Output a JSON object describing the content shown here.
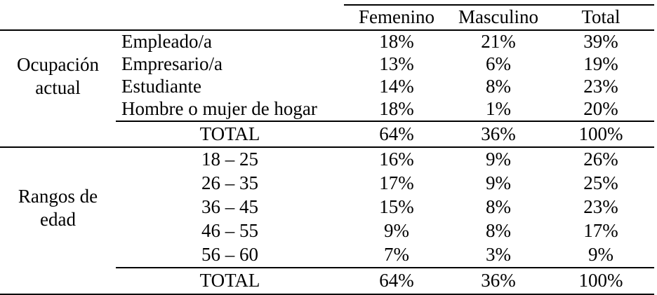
{
  "table": {
    "column_headers": [
      "Femenino",
      "Masculino",
      "Total"
    ],
    "sections": [
      {
        "group_label": "Ocupación actual",
        "rows": [
          {
            "label": "Empleado/a",
            "femenino": "18%",
            "masculino": "21%",
            "total": "39%"
          },
          {
            "label": "Empresario/a",
            "femenino": "13%",
            "masculino": "6%",
            "total": "19%"
          },
          {
            "label": "Estudiante",
            "femenino": "14%",
            "masculino": "8%",
            "total": "23%"
          },
          {
            "label": "Hombre o mujer de hogar",
            "femenino": "18%",
            "masculino": "1%",
            "total": "20%"
          }
        ],
        "total_row": {
          "label": "TOTAL",
          "femenino": "64%",
          "masculino": "36%",
          "total": "100%"
        }
      },
      {
        "group_label": "Rangos de edad",
        "rows": [
          {
            "label": "18 – 25",
            "femenino": "16%",
            "masculino": "9%",
            "total": "26%"
          },
          {
            "label": "26 – 35",
            "femenino": "17%",
            "masculino": "9%",
            "total": "25%"
          },
          {
            "label": "36 – 45",
            "femenino": "15%",
            "masculino": "8%",
            "total": "23%"
          },
          {
            "label": "46 – 55",
            "femenino": "9%",
            "masculino": "8%",
            "total": "17%"
          },
          {
            "label": "56 – 60",
            "femenino": "7%",
            "masculino": "3%",
            "total": "9%"
          }
        ],
        "total_row": {
          "label": "TOTAL",
          "femenino": "64%",
          "masculino": "36%",
          "total": "100%"
        }
      }
    ],
    "colors": {
      "text": "#000000",
      "background": "#ffffff",
      "rule": "#000000"
    }
  }
}
